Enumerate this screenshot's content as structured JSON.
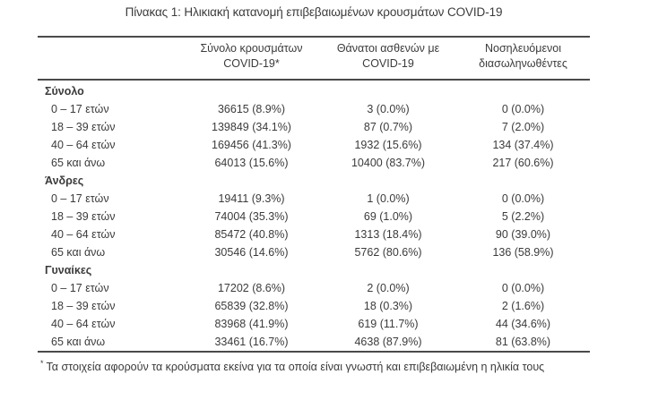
{
  "title": "Πίνακας 1: Ηλικιακή κατανομή επιβεβαιωμένων κρουσμάτων COVID-19",
  "table": {
    "columns": [
      {
        "line1": "Σύνολο κρουσμάτων",
        "line2": "COVID-19*"
      },
      {
        "line1": "Θάνατοι ασθενών με",
        "line2": "COVID-19"
      },
      {
        "line1": "Νοσηλευόμενοι",
        "line2": "διασωληνωθέντες"
      }
    ],
    "sections": [
      {
        "label": "Σύνολο",
        "rows": [
          {
            "label": "0 – 17 ετών",
            "cases": "36615 (8.9%)",
            "deaths": "3 (0.0%)",
            "intubated": "0 (0.0%)"
          },
          {
            "label": "18 – 39 ετών",
            "cases": "139849 (34.1%)",
            "deaths": "87 (0.7%)",
            "intubated": "7 (2.0%)"
          },
          {
            "label": "40 – 64 ετών",
            "cases": "169456 (41.3%)",
            "deaths": "1932 (15.6%)",
            "intubated": "134 (37.4%)"
          },
          {
            "label": "65 και άνω",
            "cases": "64013 (15.6%)",
            "deaths": "10400 (83.7%)",
            "intubated": "217 (60.6%)"
          }
        ]
      },
      {
        "label": "Άνδρες",
        "rows": [
          {
            "label": "0 – 17 ετών",
            "cases": "19411 (9.3%)",
            "deaths": "1 (0.0%)",
            "intubated": "0 (0.0%)"
          },
          {
            "label": "18 – 39 ετών",
            "cases": "74004 (35.3%)",
            "deaths": "69 (1.0%)",
            "intubated": "5 (2.2%)"
          },
          {
            "label": "40 – 64 ετών",
            "cases": "85472 (40.8%)",
            "deaths": "1313 (18.4%)",
            "intubated": "90 (39.0%)"
          },
          {
            "label": "65 και άνω",
            "cases": "30546 (14.6%)",
            "deaths": "5762 (80.6%)",
            "intubated": "136 (58.9%)"
          }
        ]
      },
      {
        "label": "Γυναίκες",
        "rows": [
          {
            "label": "0 – 17 ετών",
            "cases": "17202 (8.6%)",
            "deaths": "2 (0.0%)",
            "intubated": "0 (0.0%)"
          },
          {
            "label": "18 – 39 ετών",
            "cases": "65839 (32.8%)",
            "deaths": "18 (0.3%)",
            "intubated": "2 (1.6%)"
          },
          {
            "label": "40 – 64 ετών",
            "cases": "83968 (41.9%)",
            "deaths": "619 (11.7%)",
            "intubated": "44 (34.6%)"
          },
          {
            "label": "65 και άνω",
            "cases": "33461 (16.7%)",
            "deaths": "4638 (87.9%)",
            "intubated": "81 (63.8%)"
          }
        ]
      }
    ]
  },
  "footnote": {
    "marker": "*",
    "text": "Τα στοιχεία αφορούν τα κρούσματα εκείνα για τα οποία είναι γνωστή και επιβεβαιωμένη η ηλικία τους"
  },
  "colors": {
    "text": "#3b3b3b",
    "rule": "#4a4a4a",
    "background": "#ffffff"
  }
}
